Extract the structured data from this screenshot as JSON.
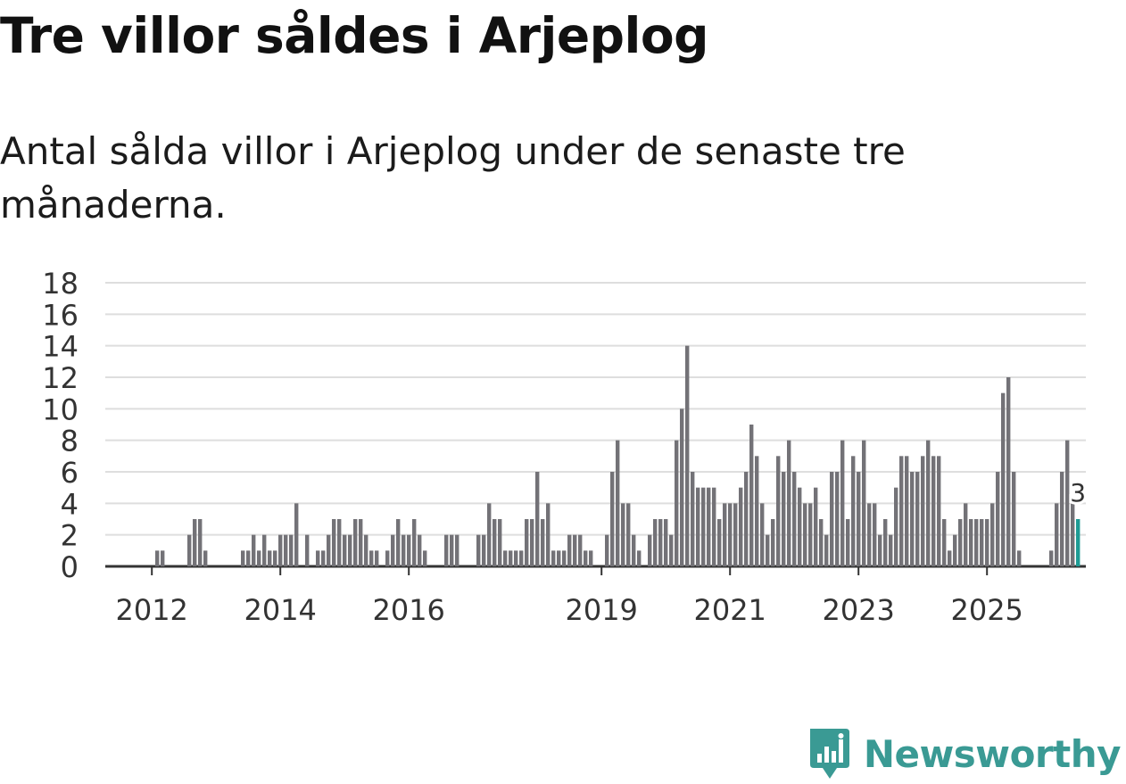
{
  "header": {
    "title": "Tre villor såldes i Arjeplog",
    "subtitle": "Antal sålda villor i Arjeplog under de senaste tre månaderna."
  },
  "brand": {
    "name": "Newsworthy",
    "color": "#3a9a94"
  },
  "colors": {
    "bar": "#737277",
    "highlight": "#1e9b94",
    "grid": "#dedede",
    "axis": "#333333"
  },
  "chart_data": {
    "type": "bar",
    "title": "Tre villor såldes i Arjeplog",
    "xlabel": "",
    "ylabel": "",
    "ylim": [
      0,
      18
    ],
    "yticks": [
      "0",
      "2",
      "4",
      "6",
      "8",
      "10",
      "12",
      "14",
      "16",
      "18"
    ],
    "xticks": [
      {
        "label": "2012",
        "index": 8
      },
      {
        "label": "2014",
        "index": 32
      },
      {
        "label": "2016",
        "index": 56
      },
      {
        "label": "2019",
        "index": 92
      },
      {
        "label": "2021",
        "index": 116
      },
      {
        "label": "2023",
        "index": 140
      },
      {
        "label": "2025",
        "index": 164
      }
    ],
    "start": "2011-05",
    "frequency": "monthly",
    "values": [
      0,
      0,
      0,
      0,
      0,
      0,
      0,
      0,
      0,
      1,
      1,
      0,
      0,
      0,
      0,
      2,
      3,
      3,
      1,
      0,
      0,
      0,
      0,
      0,
      0,
      1,
      1,
      2,
      1,
      2,
      1,
      1,
      2,
      2,
      2,
      4,
      0,
      2,
      0,
      1,
      1,
      2,
      3,
      3,
      2,
      2,
      3,
      3,
      2,
      1,
      1,
      0,
      1,
      2,
      3,
      2,
      2,
      3,
      2,
      1,
      0,
      0,
      0,
      2,
      2,
      2,
      0,
      0,
      0,
      2,
      2,
      4,
      3,
      3,
      1,
      1,
      1,
      1,
      3,
      3,
      6,
      3,
      4,
      1,
      1,
      1,
      2,
      2,
      2,
      1,
      1,
      0,
      0,
      2,
      6,
      8,
      4,
      4,
      2,
      1,
      0,
      2,
      3,
      3,
      3,
      2,
      8,
      10,
      14,
      6,
      5,
      5,
      5,
      5,
      3,
      4,
      4,
      4,
      5,
      6,
      9,
      7,
      4,
      2,
      3,
      7,
      6,
      8,
      6,
      5,
      4,
      4,
      5,
      3,
      2,
      6,
      6,
      8,
      3,
      7,
      6,
      8,
      4,
      4,
      2,
      3,
      2,
      5,
      7,
      7,
      6,
      6,
      7,
      8,
      7,
      7,
      3,
      1,
      2,
      3,
      4,
      3,
      3,
      3,
      3,
      4,
      6,
      11,
      12,
      6,
      1,
      0,
      0,
      0,
      0,
      0,
      1,
      4,
      6,
      8,
      4,
      3
    ],
    "highlight": {
      "index": 181,
      "label": "3"
    }
  }
}
